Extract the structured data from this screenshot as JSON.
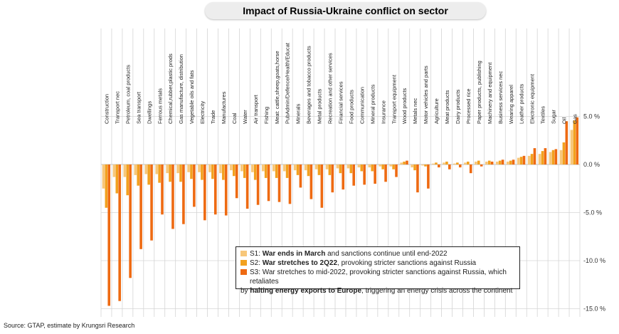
{
  "title": "Impact of Russia-Ukraine conflict on sector",
  "source": "Source: GTAP, estimate by Krungsri Research",
  "legend": {
    "s1": {
      "code": "S1:",
      "bold": "War ends in March",
      "rest": " and sanctions continue until end-2022",
      "color": "#f7c77a"
    },
    "s2": {
      "code": "S2:",
      "bold": "War stretches to 2Q22",
      "rest": ", provoking stricter sanctions against Russia",
      "color": "#f2a11f"
    },
    "s3": {
      "code": "S3:",
      "pre": " War stretches to mid-2022, provoking stricter sanctions against Russia, which retaliates",
      "cont_pre": "by ",
      "bold": "halting energy exports to Europe",
      "rest": ", triggering an energy crisis across the continent",
      "color": "#ee6a12"
    }
  },
  "chart_data": {
    "type": "bar",
    "ylim": [
      -15.5,
      6
    ],
    "yticks": [
      5,
      0,
      -5,
      -10,
      -15
    ],
    "ytick_labels": [
      "5.0 %",
      "0.0 %",
      "-5.0 %",
      "-10.0 %",
      "-15.0 %"
    ],
    "categories": [
      "Construction",
      "Transport nec",
      "Petroleum, coal products",
      "Sea transport",
      "Dwellings",
      "Ferrous metals",
      "Chemical,rubber,plastic prods",
      "Gas manufacture, distribution",
      "Vegetable oils and fats",
      "Electricity",
      "Trade",
      "Manufactures",
      "Coal",
      "Water",
      "Air transport",
      "Fishing",
      "Meat: cattle,sheep,goats,horse",
      "PubAdmin/Defence/Health/Educat",
      "Minerals",
      "Beverages and tobacco products",
      "Metal products",
      "Recreation and other services",
      "Financial services",
      "Food products",
      "Communication",
      "Mineral products",
      "Insurance",
      "Transport equipment",
      "Wood products",
      "Metals nec",
      "Motor vehicles and parts",
      "Agriculture",
      "Meat products",
      "Dairy products",
      "Processed rice",
      "Paper products, publishing",
      "Machinery and equipment",
      "Business services nec",
      "Wearing apparel",
      "Leather products",
      "Electronic equipment",
      "Textiles",
      "Sugar",
      "Oil",
      "Gas"
    ],
    "series": [
      {
        "name": "S1",
        "values": [
          -2.5,
          -1.3,
          -1.3,
          -1.1,
          -1.0,
          -1.0,
          -0.9,
          -0.9,
          -0.8,
          -0.8,
          -0.8,
          -0.9,
          -0.6,
          -0.7,
          -0.8,
          -0.7,
          -0.7,
          -0.7,
          -0.6,
          -0.6,
          -0.5,
          -0.5,
          -0.4,
          -0.4,
          -0.3,
          -0.3,
          -0.2,
          -0.2,
          0.2,
          -0.3,
          -0.1,
          0.1,
          0.2,
          0.1,
          0.2,
          0.3,
          0.3,
          0.3,
          0.3,
          0.7,
          0.9,
          1.1,
          1.3,
          1.5,
          3.6
        ]
      },
      {
        "name": "S2",
        "values": [
          -4.5,
          -3.0,
          -3.2,
          -2.2,
          -2.1,
          -1.9,
          -1.8,
          -1.8,
          -1.5,
          -1.6,
          -1.5,
          -1.6,
          -1.2,
          -1.4,
          -1.6,
          -1.4,
          -1.4,
          -1.4,
          -1.1,
          -1.2,
          -1.1,
          -1.1,
          -0.9,
          -0.9,
          -0.7,
          -0.7,
          -0.5,
          -0.5,
          0.3,
          -0.6,
          -0.2,
          0.2,
          0.3,
          0.2,
          0.3,
          0.4,
          0.4,
          0.4,
          0.4,
          0.8,
          1.1,
          1.4,
          1.5,
          2.3,
          4.6
        ]
      },
      {
        "name": "S3",
        "values": [
          -14.7,
          -14.2,
          -11.8,
          -8.8,
          -7.9,
          -5.2,
          -6.7,
          -6.2,
          -4.4,
          -5.8,
          -5.2,
          -5.3,
          -3.5,
          -4.6,
          -4.2,
          -3.8,
          -3.9,
          -4.1,
          -2.4,
          -3.6,
          -4.5,
          -2.9,
          -2.6,
          -2.2,
          -2.1,
          -2.0,
          -1.8,
          -1.3,
          0.4,
          -2.9,
          -2.5,
          -0.3,
          -0.5,
          -0.3,
          -0.9,
          -0.2,
          0.3,
          0.5,
          0.5,
          0.9,
          1.7,
          1.7,
          1.6,
          4.5,
          4.9
        ]
      }
    ]
  }
}
